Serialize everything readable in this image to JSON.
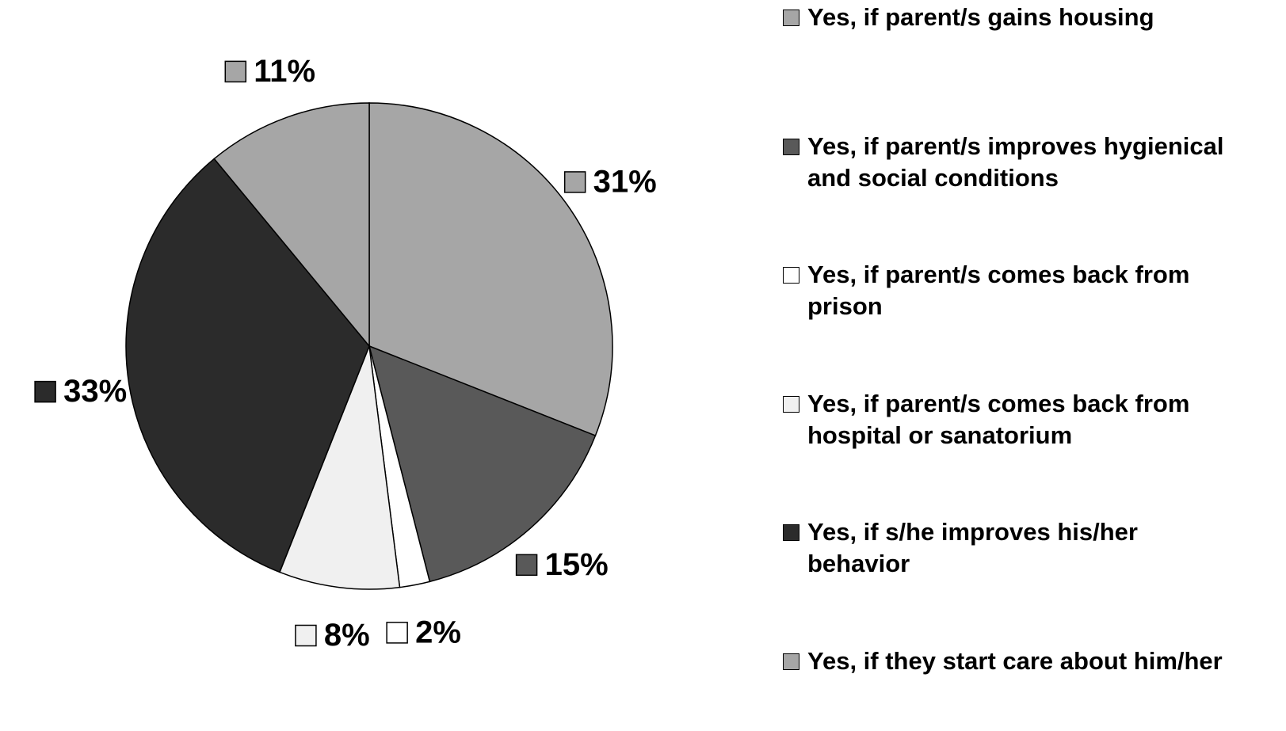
{
  "chart_data": {
    "type": "pie",
    "categories": [
      "Yes, if parent/s gains housing",
      "Yes, if parent/s improves hygienical and social conditions",
      "Yes, if parent/s comes back from prison",
      "Yes, if parent/s comes back from hospital or sanatorium",
      "Yes, if s/he improves his/her behavior",
      "Yes, if they start care about him/her"
    ],
    "values": [
      31,
      15,
      2,
      8,
      33,
      11
    ],
    "value_labels": [
      "31%",
      "15%",
      "2%",
      "8%",
      "33%",
      "11%"
    ],
    "colors": [
      "#a6a6a6",
      "#595959",
      "#ffffff",
      "#f0f0f0",
      "#2b2b2b",
      "#a6a6a6"
    ],
    "legend": "right"
  }
}
